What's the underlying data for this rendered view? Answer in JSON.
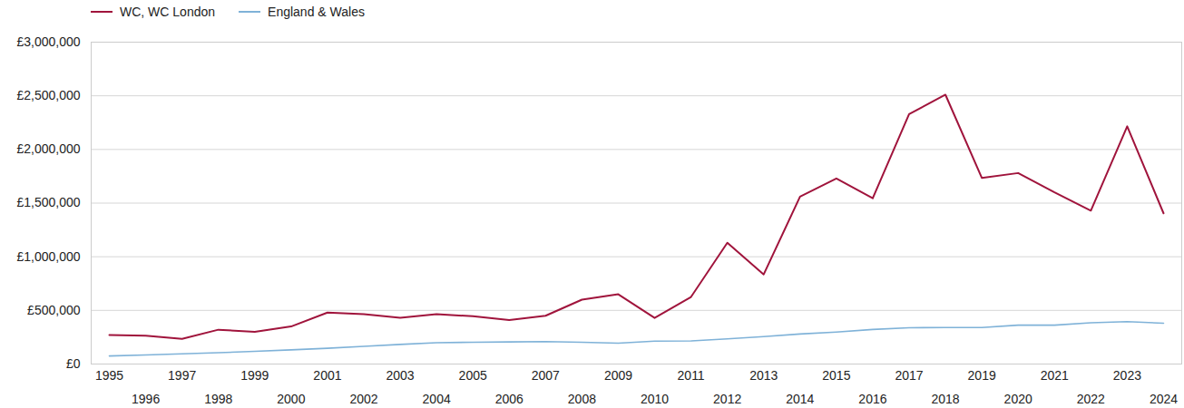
{
  "chart_data": {
    "type": "line",
    "x": [
      1995,
      1996,
      1997,
      1998,
      1999,
      2000,
      2001,
      2002,
      2003,
      2004,
      2005,
      2006,
      2007,
      2008,
      2009,
      2010,
      2011,
      2012,
      2013,
      2014,
      2015,
      2016,
      2017,
      2018,
      2019,
      2020,
      2021,
      2022,
      2023,
      2024
    ],
    "series": [
      {
        "name": "WC, WC London",
        "color": "#a0143c",
        "values": [
          270000,
          265000,
          235000,
          320000,
          300000,
          350000,
          480000,
          465000,
          430000,
          465000,
          445000,
          410000,
          450000,
          600000,
          650000,
          430000,
          625000,
          1130000,
          835000,
          1560000,
          1730000,
          1545000,
          2330000,
          2510000,
          1735000,
          1780000,
          1600000,
          1430000,
          2215000,
          1405000
        ]
      },
      {
        "name": "England & Wales",
        "color": "#7fb2d8",
        "values": [
          75000,
          85000,
          95000,
          105000,
          118000,
          132000,
          147000,
          165000,
          183000,
          198000,
          203000,
          206000,
          209000,
          203000,
          195000,
          213000,
          215000,
          235000,
          255000,
          280000,
          298000,
          322000,
          338000,
          340000,
          340000,
          362000,
          362000,
          385000,
          395000,
          380000
        ]
      }
    ],
    "xlim": [
      1994.5,
      2024.5
    ],
    "xticks": [
      1995,
      1996,
      1997,
      1998,
      1999,
      2000,
      2001,
      2002,
      2003,
      2004,
      2005,
      2006,
      2007,
      2008,
      2009,
      2010,
      2011,
      2012,
      2013,
      2014,
      2015,
      2016,
      2017,
      2018,
      2019,
      2020,
      2021,
      2022,
      2023,
      2024
    ],
    "ylim": [
      0,
      3000000
    ],
    "yticks": [
      {
        "value": 0,
        "label": "£0"
      },
      {
        "value": 500000,
        "label": "£500,000"
      },
      {
        "value": 1000000,
        "label": "£1,000,000"
      },
      {
        "value": 1500000,
        "label": "£1,500,000"
      },
      {
        "value": 2000000,
        "label": "£2,000,000"
      },
      {
        "value": 2500000,
        "label": "£2,500,000"
      },
      {
        "value": 3000000,
        "label": "£3,000,000"
      }
    ],
    "grid": true,
    "legend": "top-left"
  }
}
